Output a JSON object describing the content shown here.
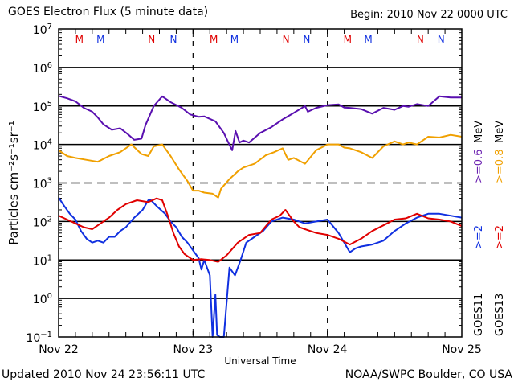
{
  "header": {
    "title": "GOES Electron Flux (5 minute data)",
    "begin": "Begin: 2010 Nov 22 0000 UTC"
  },
  "footer": {
    "updated": "Updated 2010 Nov 24 23:56:11 UTC",
    "credit": "NOAA/SWPC Boulder, CO USA"
  },
  "chart_data": {
    "type": "line",
    "title": "GOES Electron Flux (5 minute data)",
    "xlabel": "Universal Time",
    "ylabel": "Particles cm⁻²s⁻¹sr⁻¹",
    "xlim_hours": [
      0,
      72
    ],
    "ylim_log10": [
      -1,
      7
    ],
    "y_scale": "log",
    "grid": true,
    "x_ticks": [
      {
        "hours": 0,
        "label": "Nov 22"
      },
      {
        "hours": 24,
        "label": "Nov 23"
      },
      {
        "hours": 48,
        "label": "Nov 24"
      },
      {
        "hours": 72,
        "label": "Nov 25"
      }
    ],
    "y_ticks": [
      {
        "exp": 7,
        "base": "10",
        "sup": "7"
      },
      {
        "exp": 6,
        "base": "10",
        "sup": "6"
      },
      {
        "exp": 5,
        "base": "10",
        "sup": "5"
      },
      {
        "exp": 4,
        "base": "10",
        "sup": "4"
      },
      {
        "exp": 3,
        "base": "10",
        "sup": "3"
      },
      {
        "exp": 2,
        "base": "10",
        "sup": "2"
      },
      {
        "exp": 1,
        "base": "10",
        "sup": "1"
      },
      {
        "exp": 0,
        "base": "10",
        "sup": "0"
      },
      {
        "exp": -1,
        "base": "10",
        "sup": "−1"
      }
    ],
    "dashed_gridline_exp": 3,
    "markers": [
      {
        "hours": 3.7,
        "label": "M",
        "color": "#e00000"
      },
      {
        "hours": 7.5,
        "label": "M",
        "color": "#1030e0"
      },
      {
        "hours": 16.6,
        "label": "N",
        "color": "#e00000"
      },
      {
        "hours": 20.5,
        "label": "N",
        "color": "#1030e0"
      },
      {
        "hours": 27.7,
        "label": "M",
        "color": "#e00000"
      },
      {
        "hours": 31.4,
        "label": "M",
        "color": "#1030e0"
      },
      {
        "hours": 40.6,
        "label": "N",
        "color": "#e00000"
      },
      {
        "hours": 44.3,
        "label": "N",
        "color": "#1030e0"
      },
      {
        "hours": 51.6,
        "label": "M",
        "color": "#e00000"
      },
      {
        "hours": 55.3,
        "label": "M",
        "color": "#1030e0"
      },
      {
        "hours": 64.6,
        "label": "N",
        "color": "#e00000"
      },
      {
        "hours": 68.3,
        "label": "N",
        "color": "#1030e0"
      }
    ],
    "legend": {
      "placement": "right",
      "columns": [
        {
          "satellite": "GOES11",
          "entries": [
            {
              "text": ">=2",
              "color": "#1030e0"
            },
            {
              "text": ">=0.6",
              "color": "#6a1fb0"
            }
          ],
          "unit": "MeV"
        },
        {
          "satellite": "GOES13",
          "entries": [
            {
              "text": ">=2",
              "color": "#e00000"
            },
            {
              "text": ">=0.8",
              "color": "#f0a000"
            }
          ],
          "unit": "MeV"
        }
      ]
    },
    "series": [
      {
        "name": "GOES11 >=0.6 MeV",
        "color": "#5a10b0",
        "x": [
          0,
          1.5,
          3,
          4.5,
          6,
          7,
          8,
          9.5,
          11,
          12.5,
          13.5,
          14.8,
          15.5,
          17,
          18.5,
          20,
          22,
          23.5,
          25,
          26,
          28,
          29.5,
          30.3,
          31,
          31.6,
          32.3,
          33,
          34,
          36,
          38,
          40,
          42,
          44,
          44.5,
          46,
          48,
          50,
          51,
          52,
          54,
          56,
          58,
          60,
          61.5,
          62.5,
          64,
          66,
          68,
          70,
          72
        ],
        "y": [
          5.26,
          5.2,
          5.12,
          4.95,
          4.85,
          4.7,
          4.52,
          4.38,
          4.42,
          4.25,
          4.12,
          4.15,
          4.5,
          5.0,
          5.25,
          5.1,
          4.95,
          4.78,
          4.72,
          4.73,
          4.6,
          4.3,
          4.05,
          3.85,
          4.35,
          4.05,
          4.1,
          4.05,
          4.3,
          4.45,
          4.65,
          4.82,
          5.0,
          4.85,
          4.95,
          5.02,
          5.04,
          4.96,
          4.95,
          4.92,
          4.8,
          4.95,
          4.9,
          5.0,
          4.98,
          5.05,
          5.0,
          5.25,
          5.22,
          5.22
        ]
      },
      {
        "name": "GOES13 >=0.8 MeV",
        "color": "#f0a000",
        "x": [
          0,
          1.5,
          3,
          5,
          7,
          9,
          11,
          13,
          14.8,
          16,
          17,
          18.5,
          20,
          21.5,
          23,
          24,
          25,
          26,
          27.5,
          28.5,
          29,
          30.5,
          32,
          33,
          35,
          37,
          38.5,
          40,
          41,
          42,
          44,
          46,
          48,
          50,
          51,
          52,
          54,
          56,
          58,
          60,
          61.5,
          62.5,
          64,
          66,
          68,
          70,
          72
        ],
        "y": [
          3.85,
          3.7,
          3.65,
          3.6,
          3.55,
          3.7,
          3.8,
          4.0,
          3.75,
          3.7,
          3.95,
          4.0,
          3.7,
          3.35,
          3.05,
          2.8,
          2.8,
          2.75,
          2.72,
          2.62,
          2.85,
          3.1,
          3.3,
          3.4,
          3.5,
          3.72,
          3.8,
          3.9,
          3.6,
          3.65,
          3.5,
          3.85,
          4.0,
          4.0,
          3.92,
          3.9,
          3.8,
          3.65,
          3.95,
          4.08,
          4.0,
          4.05,
          4.0,
          4.2,
          4.18,
          4.25,
          4.2
        ]
      },
      {
        "name": "GOES11 >=2 MeV",
        "color": "#1030e0",
        "x": [
          0,
          1,
          2,
          3,
          4,
          5,
          6,
          7,
          8,
          9,
          10,
          11,
          12,
          13.5,
          15,
          16,
          16.5,
          17.5,
          19,
          20,
          21,
          22,
          23,
          24,
          25,
          25.5,
          26,
          27,
          27.5,
          28,
          28.3,
          28.8,
          29.5,
          30.5,
          31.5,
          32.5,
          33.5,
          35,
          36.5,
          38,
          40,
          42,
          44,
          46,
          48,
          50,
          51,
          52,
          53,
          54,
          56,
          58,
          60,
          62,
          64,
          66,
          68,
          70,
          72
        ],
        "y": [
          2.62,
          2.4,
          2.2,
          2.05,
          1.75,
          1.55,
          1.45,
          1.5,
          1.45,
          1.6,
          1.6,
          1.75,
          1.85,
          2.1,
          2.3,
          2.55,
          2.55,
          2.4,
          2.2,
          2.0,
          1.85,
          1.6,
          1.45,
          1.25,
          1.05,
          0.75,
          1.0,
          0.6,
          -1.0,
          0.1,
          -0.95,
          -1.0,
          -1.0,
          0.8,
          0.6,
          1.0,
          1.45,
          1.6,
          1.75,
          2.0,
          2.1,
          2.05,
          1.95,
          2.0,
          2.05,
          1.7,
          1.45,
          1.2,
          1.3,
          1.35,
          1.4,
          1.5,
          1.75,
          1.95,
          2.1,
          2.2,
          2.2,
          2.15,
          2.1
        ]
      },
      {
        "name": "GOES13 >=2 MeV",
        "color": "#e00000",
        "x": [
          0,
          1.5,
          3,
          4.5,
          6,
          7.5,
          9,
          10.5,
          12,
          14,
          16,
          17.5,
          18.5,
          19.5,
          20.5,
          21.5,
          22.5,
          24,
          25.5,
          27,
          28.5,
          30,
          32,
          34,
          36,
          38,
          39.5,
          40.5,
          42,
          43,
          44,
          46,
          48,
          50,
          52,
          54,
          56,
          58,
          60,
          62,
          64,
          66,
          68,
          70,
          72
        ],
        "y": [
          2.15,
          2.05,
          1.95,
          1.85,
          1.8,
          1.95,
          2.1,
          2.3,
          2.45,
          2.55,
          2.5,
          2.6,
          2.55,
          2.15,
          1.7,
          1.35,
          1.15,
          1.0,
          1.02,
          1.0,
          0.95,
          1.12,
          1.45,
          1.65,
          1.7,
          2.05,
          2.15,
          2.3,
          2.0,
          1.85,
          1.8,
          1.7,
          1.65,
          1.55,
          1.4,
          1.55,
          1.75,
          1.9,
          2.05,
          2.08,
          2.2,
          2.08,
          2.05,
          2.0,
          1.88
        ]
      }
    ]
  }
}
